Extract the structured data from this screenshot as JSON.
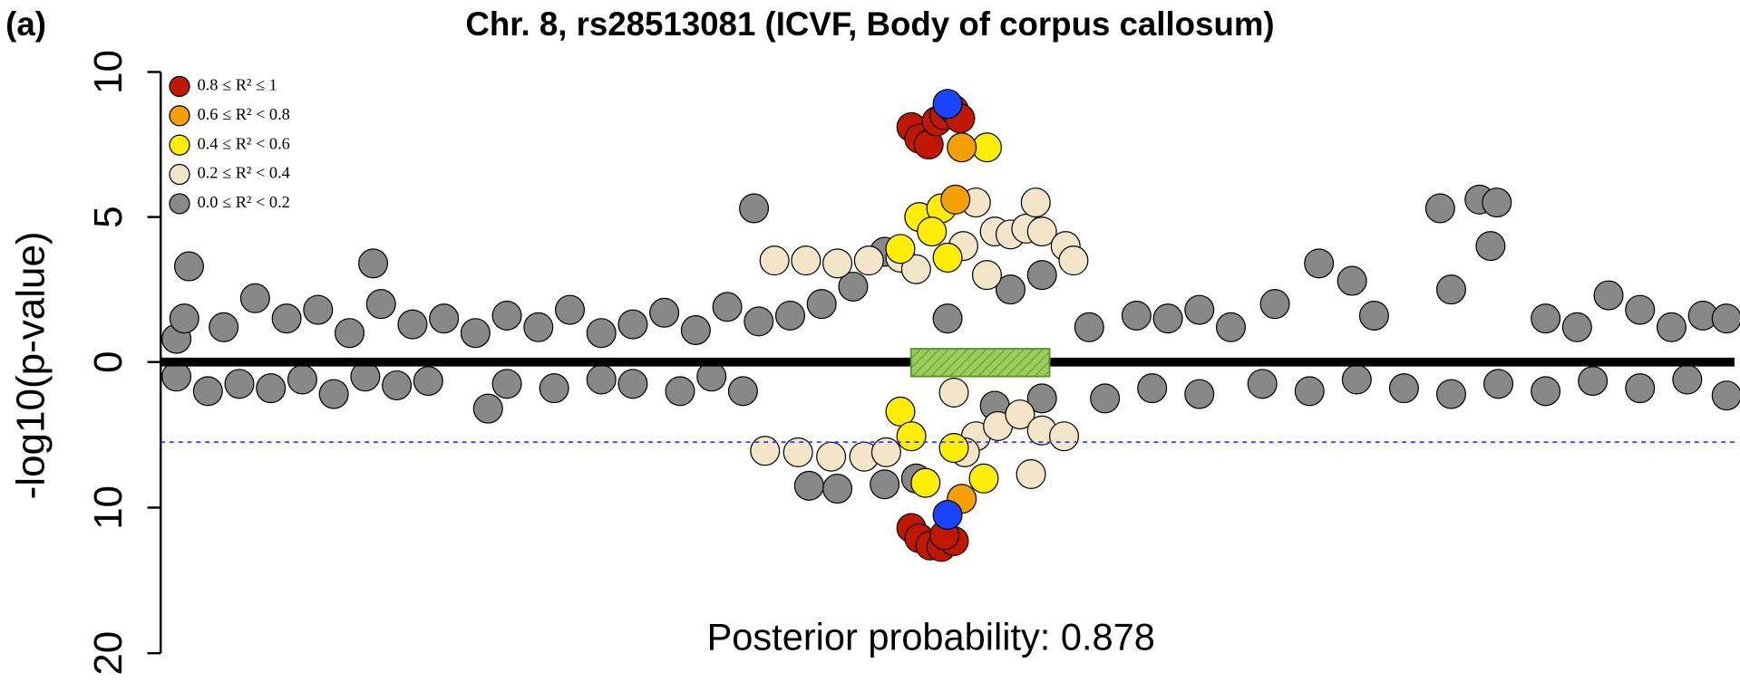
{
  "chart_data": [
    {
      "type": "scatter",
      "panel_label": "(a)",
      "title": "Chr. 8, rs28513081 (ICVF, Body of corpus callosum)",
      "y_label": "-log10(p-value)",
      "xlim": [
        0,
        100
      ],
      "ylim": [
        0,
        10
      ],
      "yticks": [
        0,
        5,
        10
      ],
      "legend": "upper left",
      "series": [
        {
          "name": "0.0 ≤ R² < 0.2",
          "color": "#888888",
          "x": [
            1,
            1.5,
            1.8,
            4,
            6,
            8,
            10,
            12,
            13.5,
            14,
            16,
            18,
            20,
            22,
            24,
            26,
            28,
            30,
            32,
            34,
            36,
            38,
            40,
            42,
            44,
            46,
            37.7,
            50,
            54,
            56,
            59,
            62,
            64,
            66,
            68,
            70.8,
            73.6,
            75.7,
            77.1,
            81.3,
            83.8,
            84.9,
            84.5,
            82,
            88,
            90,
            92,
            94,
            96,
            98,
            99.5
          ],
          "values": [
            0.8,
            1.5,
            3.3,
            1.2,
            2.2,
            1.5,
            1.8,
            1.0,
            3.4,
            2.0,
            1.3,
            1.5,
            1.0,
            1.6,
            1.2,
            1.8,
            1.0,
            1.3,
            1.7,
            1.1,
            1.9,
            1.4,
            1.6,
            2.0,
            2.6,
            3.8,
            5.3,
            1.5,
            2.5,
            3.0,
            1.2,
            1.6,
            1.5,
            1.8,
            1.2,
            2.0,
            3.4,
            2.8,
            1.6,
            5.3,
            5.6,
            5.5,
            4.0,
            2.5,
            1.5,
            1.2,
            2.3,
            1.8,
            1.2,
            1.6,
            1.5
          ]
        },
        {
          "name": "0.2 ≤ R² < 0.4",
          "color": "#f3e6c8",
          "x": [
            39,
            41,
            43,
            45,
            47,
            48,
            51,
            51.8,
            53,
            54,
            55,
            56,
            55.6,
            57.5,
            58,
            52.5
          ],
          "values": [
            3.5,
            3.5,
            3.4,
            3.5,
            3.6,
            3.2,
            4.0,
            5.5,
            4.5,
            4.4,
            4.6,
            4.5,
            5.5,
            4.0,
            3.5,
            3.0
          ]
        },
        {
          "name": "0.4 ≤ R² < 0.6",
          "color": "#ffee00",
          "x": [
            47.0,
            48.2,
            49.6,
            50.0,
            52.5,
            49.0
          ],
          "values": [
            3.9,
            5.0,
            5.3,
            3.6,
            7.4,
            4.5
          ]
        },
        {
          "name": "0.6 ≤ R² < 0.8",
          "color": "#f5a000",
          "x": [
            50.5,
            50.9
          ],
          "values": [
            5.6,
            7.4
          ]
        },
        {
          "name": "0.8 ≤ R² ≤ 1",
          "color": "#c01800",
          "x": [
            47.7,
            48.2,
            48.8,
            49.3,
            49.8,
            50.4,
            50.8
          ],
          "values": [
            8.1,
            7.7,
            7.5,
            8.3,
            8.5,
            8.7,
            8.4
          ]
        },
        {
          "color": "#1a44ff",
          "x": [
            50.0
          ],
          "values": [
            8.9
          ]
        }
      ]
    },
    {
      "type": "scatter",
      "annotation": "Posterior probability: 0.878",
      "xlim": [
        0,
        100
      ],
      "ylim": [
        0,
        20
      ],
      "yticks": [
        10,
        20
      ],
      "inverted": true,
      "threshold": 5.5,
      "series": [
        {
          "color": "#888888",
          "x": [
            1,
            3,
            5,
            7,
            9,
            11,
            13,
            15,
            17,
            20.8,
            22,
            25,
            28,
            30,
            33,
            35,
            37,
            41.2,
            43,
            46,
            48,
            53,
            56,
            60,
            63,
            66,
            70,
            73,
            76,
            79,
            82,
            85,
            88,
            91,
            94,
            97,
            99.5
          ],
          "values": [
            1.0,
            2.0,
            1.5,
            1.8,
            1.2,
            2.2,
            1.0,
            1.6,
            1.3,
            3.2,
            1.5,
            1.8,
            1.2,
            1.5,
            2.0,
            1.0,
            2.0,
            8.5,
            8.7,
            8.4,
            8.0,
            3.0,
            2.5,
            2.5,
            1.8,
            2.2,
            1.5,
            2.0,
            1.2,
            1.8,
            2.2,
            1.5,
            2.0,
            1.3,
            1.8,
            1.2,
            2.3
          ]
        },
        {
          "color": "#f3e6c8",
          "x": [
            38.4,
            40.5,
            42.6,
            44.7,
            46.1,
            50.4,
            51.8,
            53.2,
            54.6,
            56.0,
            57.4,
            55.3,
            51.1
          ],
          "values": [
            6.1,
            6.2,
            6.5,
            6.5,
            6.2,
            2.1,
            5.1,
            4.4,
            3.6,
            4.7,
            5.1,
            7.7,
            6.2
          ]
        },
        {
          "color": "#ffee00",
          "x": [
            47.0,
            47.7,
            48.6,
            52.3,
            50.4
          ],
          "values": [
            3.4,
            5.1,
            8.3,
            8.0,
            5.9
          ]
        },
        {
          "color": "#f5a000",
          "x": [
            50.9
          ],
          "values": [
            9.4
          ]
        },
        {
          "color": "#c01800",
          "x": [
            47.7,
            48.2,
            48.9,
            49.6,
            50.4,
            49.8
          ],
          "values": [
            11.4,
            12.1,
            12.6,
            12.7,
            12.3,
            11.9
          ]
        },
        {
          "color": "#1a44ff",
          "x": [
            50.0
          ],
          "values": [
            10.5
          ]
        }
      ]
    }
  ]
}
